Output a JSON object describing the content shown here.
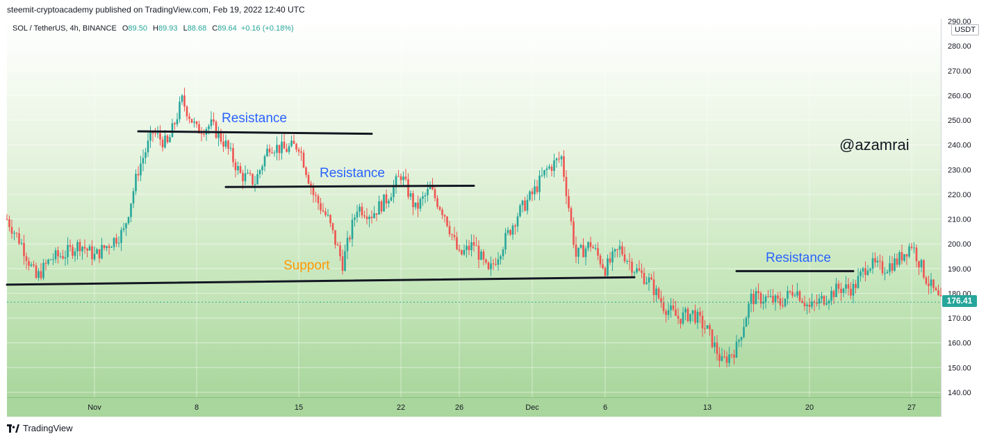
{
  "published_line": "steemit-cryptoacademy published on TradingView.com, Feb 19, 2022 12:40 UTC",
  "legend": {
    "symbol": "SOL / TetherUS, 4h, BINANCE",
    "o_label": "O",
    "o": "89.50",
    "h_label": "H",
    "h": "89.93",
    "l_label": "L",
    "l": "88.68",
    "c_label": "C",
    "c": "89.64",
    "change": "+0.16 (+0.18%)"
  },
  "currency": "USDT",
  "last_price": "176.41",
  "watermark": "@azamrai",
  "brand": "TradingView",
  "colors": {
    "up": "#26a69a",
    "down": "#ef5350",
    "annotation_blue": "#2962ff",
    "annotation_orange": "#ff9800"
  },
  "annotations": [
    {
      "text": "Resistance",
      "color": "#2962ff"
    },
    {
      "text": "Resistance",
      "color": "#2962ff"
    },
    {
      "text": "Support",
      "color": "#ff9800"
    },
    {
      "text": "Resistance",
      "color": "#2962ff"
    }
  ],
  "chart_data": {
    "type": "candlestick",
    "symbol": "SOL / TetherUS",
    "interval": "4h",
    "exchange": "BINANCE",
    "ylim": [
      138,
      291
    ],
    "y_ticks": [
      "290.00",
      "280.00",
      "270.00",
      "260.00",
      "250.00",
      "240.00",
      "230.00",
      "220.00",
      "210.00",
      "200.00",
      "190.00",
      "180.00",
      "170.00",
      "160.00",
      "150.00",
      "140.00"
    ],
    "y_tick_values": [
      290,
      280,
      270,
      260,
      250,
      240,
      230,
      220,
      210,
      200,
      190,
      180,
      170,
      160,
      150,
      140
    ],
    "x_ticks": [
      "Nov",
      "8",
      "15",
      "22",
      "26",
      "Dec",
      "6",
      "13",
      "20",
      "27"
    ],
    "x_tick_dates": [
      "2021-11-01",
      "2021-11-08",
      "2021-11-15",
      "2021-11-22",
      "2021-11-26",
      "2021-12-01",
      "2021-12-06",
      "2021-12-13",
      "2021-12-20",
      "2021-12-27"
    ],
    "x_range": [
      "2021-10-26",
      "2021-12-29"
    ],
    "price_path": [
      [
        "2021-10-26",
        210
      ],
      [
        "2021-10-27",
        200
      ],
      [
        "2021-10-28",
        186
      ],
      [
        "2021-10-29",
        194
      ],
      [
        "2021-10-30",
        196
      ],
      [
        "2021-10-31",
        200
      ],
      [
        "2021-11-01",
        195
      ],
      [
        "2021-11-02",
        200
      ],
      [
        "2021-11-03",
        205
      ],
      [
        "2021-11-04",
        230
      ],
      [
        "2021-11-05",
        245
      ],
      [
        "2021-11-06",
        240
      ],
      [
        "2021-11-07",
        258
      ],
      [
        "2021-11-08",
        246
      ],
      [
        "2021-11-09",
        248
      ],
      [
        "2021-11-10",
        240
      ],
      [
        "2021-11-11",
        228
      ],
      [
        "2021-11-12",
        225
      ],
      [
        "2021-11-13",
        240
      ],
      [
        "2021-11-14",
        238
      ],
      [
        "2021-11-15",
        240
      ],
      [
        "2021-11-16",
        220
      ],
      [
        "2021-11-17",
        210
      ],
      [
        "2021-11-18",
        192
      ],
      [
        "2021-11-19",
        215
      ],
      [
        "2021-11-20",
        212
      ],
      [
        "2021-11-21",
        218
      ],
      [
        "2021-11-22",
        228
      ],
      [
        "2021-11-23",
        214
      ],
      [
        "2021-11-24",
        222
      ],
      [
        "2021-11-25",
        212
      ],
      [
        "2021-11-26",
        195
      ],
      [
        "2021-11-27",
        200
      ],
      [
        "2021-11-28",
        188
      ],
      [
        "2021-11-29",
        200
      ],
      [
        "2021-11-30",
        212
      ],
      [
        "2021-12-01",
        220
      ],
      [
        "2021-12-02",
        230
      ],
      [
        "2021-12-03",
        235
      ],
      [
        "2021-12-04",
        195
      ],
      [
        "2021-12-05",
        200
      ],
      [
        "2021-12-06",
        190
      ],
      [
        "2021-12-07",
        198
      ],
      [
        "2021-12-08",
        190
      ],
      [
        "2021-12-09",
        185
      ],
      [
        "2021-12-10",
        175
      ],
      [
        "2021-12-11",
        170
      ],
      [
        "2021-12-12",
        172
      ],
      [
        "2021-12-13",
        165
      ],
      [
        "2021-12-14",
        152
      ],
      [
        "2021-12-15",
        158
      ],
      [
        "2021-12-16",
        178
      ],
      [
        "2021-12-17",
        178
      ],
      [
        "2021-12-18",
        176
      ],
      [
        "2021-12-19",
        182
      ],
      [
        "2021-12-20",
        174
      ],
      [
        "2021-12-21",
        178
      ],
      [
        "2021-12-22",
        182
      ],
      [
        "2021-12-23",
        182
      ],
      [
        "2021-12-24",
        192
      ],
      [
        "2021-12-25",
        190
      ],
      [
        "2021-12-26",
        193
      ],
      [
        "2021-12-27",
        200
      ],
      [
        "2021-12-28",
        186
      ],
      [
        "2021-12-29",
        176
      ]
    ],
    "drawings": [
      {
        "label": "Resistance",
        "from": [
          "2021-11-04",
          245.5
        ],
        "to": [
          "2021-11-20",
          244.5
        ]
      },
      {
        "label": "Resistance",
        "from": [
          "2021-11-10",
          223
        ],
        "to": [
          "2021-11-27",
          223.5
        ]
      },
      {
        "label": "Support",
        "from": [
          "2021-10-26",
          183.5
        ],
        "to": [
          "2021-12-08",
          186.5
        ]
      },
      {
        "label": "Resistance",
        "from": [
          "2021-12-15",
          189
        ],
        "to": [
          "2021-12-23",
          189
        ]
      }
    ]
  }
}
